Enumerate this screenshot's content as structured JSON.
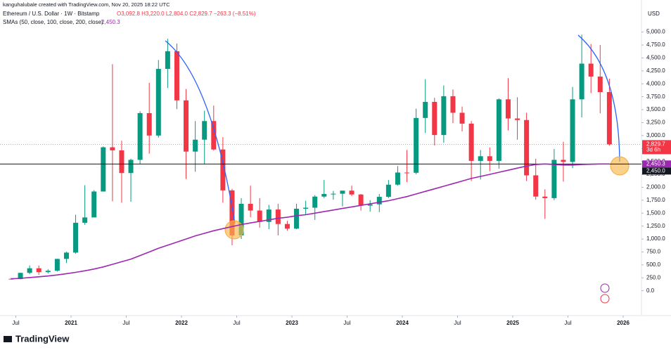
{
  "chart_data": {
    "type": "candlestick",
    "credit": "kanguhalubale created with TradingView.com, Nov 20, 2025 18:22 UTC",
    "title": "Ethereum / U.S. Dollar · 1W · Bitstamp",
    "ohlc_text": "O3,092.8 H3,220.0 L2,804.0 C2,829.7 −263.3 (−8.51%)",
    "indicator": "SMAs (50, close, 100, close, 200, close)",
    "indicator_value": "2,450.3",
    "currency": "USD",
    "last_price_label": "2,829.7",
    "countdown": "3d 6h",
    "brand": "TradingView",
    "up_color": "#089981",
    "down_color": "#f23645",
    "x": [
      "2020-06",
      "2020-07",
      "2020-08",
      "2020-09",
      "2020-10",
      "2020-11",
      "2020-12",
      "2021-01",
      "2021-02",
      "2021-03",
      "2021-04",
      "2021-05",
      "2021-06",
      "2021-07",
      "2021-08",
      "2021-09",
      "2021-10",
      "2021-11",
      "2021-12",
      "2022-01",
      "2022-02",
      "2022-03",
      "2022-04",
      "2022-05",
      "2022-06",
      "2022-07",
      "2022-08",
      "2022-09",
      "2022-10",
      "2022-11",
      "2022-12",
      "2023-01",
      "2023-02",
      "2023-03",
      "2023-04",
      "2023-05",
      "2023-06",
      "2023-07",
      "2023-08",
      "2023-09",
      "2023-10",
      "2023-11",
      "2023-12",
      "2024-01",
      "2024-02",
      "2024-03",
      "2024-04",
      "2024-05",
      "2024-06",
      "2024-07",
      "2024-08",
      "2024-09",
      "2024-10",
      "2024-11",
      "2024-12",
      "2025-01",
      "2025-02",
      "2025-03",
      "2025-04",
      "2025-05",
      "2025-06",
      "2025-07",
      "2025-08",
      "2025-09",
      "2025-10",
      "2025-11"
    ],
    "open": [
      231,
      226,
      345,
      434,
      360,
      386,
      615,
      737,
      1314,
      1417,
      1918,
      2773,
      2714,
      2275,
      2530,
      3433,
      3000,
      4288,
      4630,
      3680,
      2690,
      2920,
      3280,
      2730,
      1940,
      1070,
      1680,
      1550,
      1330,
      1570,
      1290,
      1200,
      1585,
      1605,
      1820,
      1870,
      1875,
      1935,
      1860,
      1645,
      1670,
      1815,
      2050,
      2285,
      2280,
      3340,
      3650,
      3010,
      3760,
      3440,
      3230,
      2510,
      2600,
      2510,
      3700,
      3330,
      3300,
      2230,
      1820,
      1790,
      2530,
      2490,
      3700,
      4390,
      4140,
      3840
    ],
    "high": [
      250,
      348,
      490,
      488,
      415,
      620,
      755,
      1470,
      2040,
      1945,
      2790,
      4380,
      2900,
      2550,
      3470,
      4020,
      4460,
      4870,
      4780,
      3900,
      3280,
      3480,
      3580,
      2970,
      1970,
      1790,
      2030,
      1790,
      1660,
      1680,
      1350,
      1680,
      1740,
      1850,
      2140,
      1930,
      1930,
      2030,
      1870,
      1750,
      1870,
      2140,
      2410,
      2720,
      3520,
      4090,
      3730,
      3970,
      3890,
      3560,
      3280,
      2720,
      2770,
      3720,
      4110,
      3740,
      3440,
      2550,
      1960,
      2740,
      2880,
      3940,
      4950,
      4770,
      4750,
      4100
    ],
    "low": [
      216,
      220,
      320,
      308,
      335,
      370,
      535,
      715,
      1275,
      1420,
      1920,
      1730,
      1700,
      1720,
      2450,
      2650,
      2960,
      3920,
      3510,
      2160,
      2300,
      2450,
      2710,
      1700,
      880,
      1000,
      1420,
      1220,
      1190,
      1070,
      1160,
      1190,
      1460,
      1370,
      1790,
      1760,
      1630,
      1830,
      1550,
      1530,
      1520,
      1790,
      2030,
      2100,
      2250,
      3050,
      2810,
      2860,
      3240,
      3080,
      2120,
      2150,
      2310,
      2360,
      3100,
      2920,
      2120,
      1760,
      1390,
      1750,
      2110,
      2370,
      3350,
      3820,
      3430,
      2804
    ],
    "close": [
      226,
      345,
      434,
      360,
      386,
      615,
      737,
      1314,
      1417,
      1918,
      2773,
      2714,
      2275,
      2530,
      3433,
      3000,
      4288,
      4630,
      3680,
      2690,
      2920,
      3280,
      2730,
      1940,
      1070,
      1680,
      1550,
      1330,
      1570,
      1290,
      1200,
      1585,
      1605,
      1820,
      1870,
      1875,
      1935,
      1860,
      1645,
      1670,
      1815,
      2050,
      2285,
      2280,
      3340,
      3650,
      3010,
      3760,
      3440,
      3230,
      2510,
      2600,
      2510,
      3700,
      3330,
      3300,
      2230,
      1820,
      1790,
      2530,
      2490,
      3700,
      4390,
      4140,
      3840,
      2829.7
    ],
    "sma": {
      "name": "SMA 200",
      "color": "#9c27b0",
      "values": [
        230,
        240,
        255,
        270,
        285,
        305,
        330,
        355,
        385,
        420,
        460,
        510,
        560,
        610,
        680,
        750,
        820,
        880,
        940,
        1000,
        1060,
        1110,
        1160,
        1200,
        1240,
        1280,
        1310,
        1340,
        1370,
        1400,
        1420,
        1450,
        1470,
        1500,
        1530,
        1560,
        1590,
        1620,
        1650,
        1680,
        1710,
        1740,
        1780,
        1820,
        1870,
        1920,
        1970,
        2020,
        2070,
        2120,
        2170,
        2210,
        2250,
        2290,
        2330,
        2370,
        2410,
        2440,
        2450,
        2440,
        2430,
        2430,
        2440,
        2445,
        2450,
        2450.3
      ]
    },
    "hline": {
      "value": 2450,
      "label": "2,450.0"
    },
    "ylim": [
      -480,
      5620
    ],
    "yticks": [
      {
        "value": 0,
        "label": "0.0"
      },
      {
        "value": 250,
        "label": "250.0"
      },
      {
        "value": 500,
        "label": "500.0"
      },
      {
        "value": 750,
        "label": "750.0"
      },
      {
        "value": 1000,
        "label": "1,000.0"
      },
      {
        "value": 1250,
        "label": "1,250.0"
      },
      {
        "value": 1500,
        "label": "1,500.0"
      },
      {
        "value": 1750,
        "label": "1,750.0"
      },
      {
        "value": 2000,
        "label": "2,000.0"
      },
      {
        "value": 2250,
        "label": "2,250.0"
      },
      {
        "value": 2500,
        "label": "2,500.0"
      },
      {
        "value": 2750,
        "label": "2,750.0"
      },
      {
        "value": 3000,
        "label": "3,000.0"
      },
      {
        "value": 3250,
        "label": "3,250.0"
      },
      {
        "value": 3500,
        "label": "3,500.0"
      },
      {
        "value": 3750,
        "label": "3,750.0"
      },
      {
        "value": 4000,
        "label": "4,000.0"
      },
      {
        "value": 4250,
        "label": "4,250.0"
      },
      {
        "value": 4500,
        "label": "4,500.0"
      },
      {
        "value": 4750,
        "label": "4,750.0"
      },
      {
        "value": 5000,
        "label": "5,000.0"
      }
    ],
    "xticks": [
      {
        "value": "2020-07",
        "label": "Jul"
      },
      {
        "value": "2021-01",
        "label": "2021"
      },
      {
        "value": "2021-07",
        "label": "Jul"
      },
      {
        "value": "2022-01",
        "label": "2022"
      },
      {
        "value": "2022-07",
        "label": "Jul"
      },
      {
        "value": "2023-01",
        "label": "2023"
      },
      {
        "value": "2023-07",
        "label": "Jul"
      },
      {
        "value": "2024-01",
        "label": "2024"
      },
      {
        "value": "2024-07",
        "label": "Jul"
      },
      {
        "value": "2025-01",
        "label": "2025"
      },
      {
        "value": "2025-07",
        "label": "Jul"
      },
      {
        "value": "2026-01",
        "label": "2026"
      }
    ]
  }
}
